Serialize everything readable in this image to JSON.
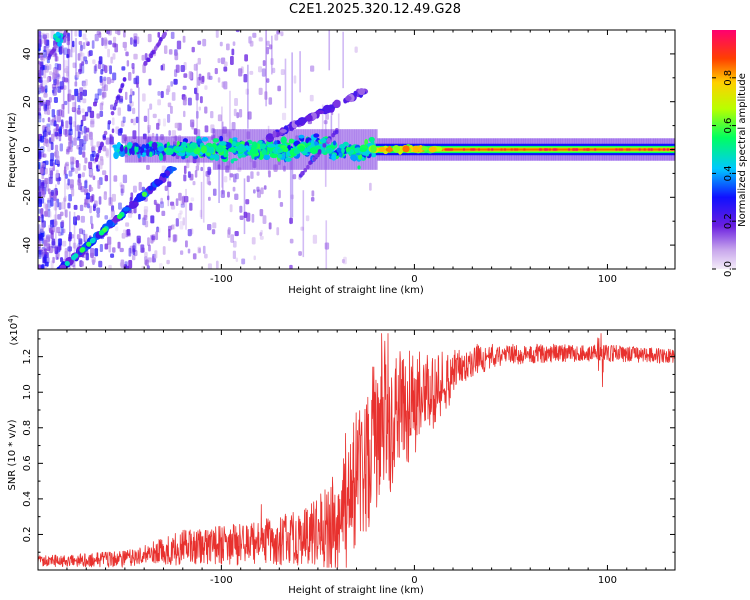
{
  "title": "C2E1.2025.320.12.49.G28",
  "chart_data": [
    {
      "type": "heatmap",
      "name": "spectrogram",
      "xlabel": "Height of straight line (km)",
      "ylabel": "Frequency (Hz)",
      "xlim": [
        -195,
        135
      ],
      "ylim": [
        -50,
        50
      ],
      "xticks": [
        -100,
        0,
        100
      ],
      "yticks": [
        -40,
        -20,
        0,
        20,
        40
      ],
      "colorbar": {
        "label": "Normalized spectral amplitude",
        "range": [
          0,
          1
        ],
        "ticks": [
          0.0,
          0.2,
          0.4,
          0.6,
          0.8
        ],
        "tick_labels": [
          "0.0",
          "0.2",
          "0.4",
          "0.6",
          "0.8"
        ]
      },
      "features": [
        {
          "name": "carrier",
          "freq": 0,
          "x_range": [
            -150,
            135
          ],
          "amplitude_start": 0.35,
          "amplitude_end": 0.9
        },
        {
          "name": "diagonal-lower",
          "from": [
            -190,
            -55
          ],
          "to": [
            -125,
            -8
          ],
          "amplitude": 0.3
        },
        {
          "name": "diagonal-upper",
          "from": [
            -75,
            5
          ],
          "to": [
            -25,
            25
          ],
          "amplitude": 0.2
        }
      ]
    },
    {
      "type": "line",
      "name": "snr",
      "xlabel": "Height of straight line (km)",
      "ylabel": "SNR (10 * v/v)",
      "yscale_label": "(x10",
      "yscale_exp": "4",
      "xlim": [
        -195,
        135
      ],
      "ylim": [
        0,
        1.35
      ],
      "xticks": [
        -100,
        0,
        100
      ],
      "yticks": [
        0.2,
        0.4,
        0.6,
        0.8,
        1.0,
        1.2
      ],
      "ytick_labels": [
        "0.2",
        "0.4",
        "0.6",
        "0.8",
        "1.0",
        "1.2"
      ],
      "color": "#e8312e",
      "profile": [
        [
          -195,
          0.05
        ],
        [
          -150,
          0.06
        ],
        [
          -135,
          0.1
        ],
        [
          -110,
          0.14
        ],
        [
          -80,
          0.15
        ],
        [
          -60,
          0.18
        ],
        [
          -45,
          0.22
        ],
        [
          -35,
          0.35
        ],
        [
          -28,
          0.55
        ],
        [
          -22,
          0.7
        ],
        [
          -15,
          0.8
        ],
        [
          -5,
          0.9
        ],
        [
          5,
          0.98
        ],
        [
          15,
          1.05
        ],
        [
          22,
          1.12
        ],
        [
          30,
          1.18
        ],
        [
          45,
          1.21
        ],
        [
          70,
          1.22
        ],
        [
          100,
          1.22
        ],
        [
          135,
          1.2
        ]
      ],
      "noise_profile": [
        [
          -195,
          0.03
        ],
        [
          -140,
          0.05
        ],
        [
          -120,
          0.1
        ],
        [
          -90,
          0.12
        ],
        [
          -55,
          0.16
        ],
        [
          -40,
          0.3
        ],
        [
          -25,
          0.45
        ],
        [
          -10,
          0.38
        ],
        [
          10,
          0.22
        ],
        [
          25,
          0.1
        ],
        [
          45,
          0.06
        ],
        [
          135,
          0.04
        ]
      ]
    }
  ]
}
